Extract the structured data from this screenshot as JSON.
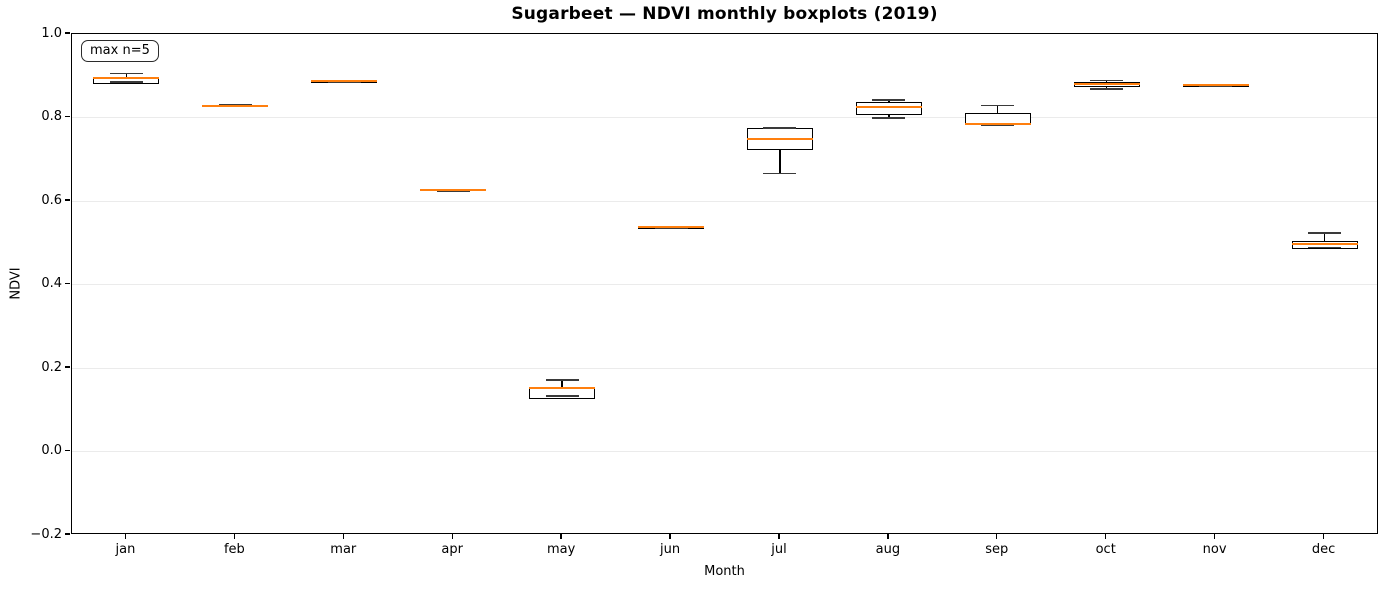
{
  "chart_data": {
    "type": "box",
    "title": "Sugarbeet — NDVI monthly boxplots (2019)",
    "xlabel": "Month",
    "ylabel": "NDVI",
    "annotation": "max n=5",
    "ylim": [
      -0.2,
      1.0
    ],
    "grid": "horizontal-light",
    "legend_position": "none",
    "yticks": [
      {
        "value": 1.0,
        "label": "1.0"
      },
      {
        "value": 0.8,
        "label": "0.8"
      },
      {
        "value": 0.6,
        "label": "0.6"
      },
      {
        "value": 0.4,
        "label": "0.4"
      },
      {
        "value": 0.2,
        "label": "0.2"
      },
      {
        "value": 0.0,
        "label": "0.0"
      },
      {
        "value": -0.2,
        "label": "−0.2"
      }
    ],
    "categories": [
      "jan",
      "feb",
      "mar",
      "apr",
      "may",
      "jun",
      "jul",
      "aug",
      "sep",
      "oct",
      "nov",
      "dec"
    ],
    "boxes": [
      {
        "month": "jan",
        "whislo": 0.88,
        "q1": 0.88,
        "med": 0.894,
        "q3": 0.897,
        "whishi": 0.905,
        "cap_low": 0.885
      },
      {
        "month": "feb",
        "whislo": 0.827,
        "q1": 0.827,
        "med": 0.828,
        "q3": 0.83,
        "whishi": 0.83
      },
      {
        "month": "mar",
        "whislo": 0.885,
        "q1": 0.885,
        "med": 0.887,
        "q3": 0.889,
        "whishi": 0.889
      },
      {
        "month": "apr",
        "whislo": 0.623,
        "q1": 0.623,
        "med": 0.626,
        "q3": 0.628,
        "whishi": 0.628
      },
      {
        "month": "may",
        "whislo": 0.126,
        "q1": 0.126,
        "med": 0.151,
        "q3": 0.154,
        "whishi": 0.171,
        "cap_low": 0.133
      },
      {
        "month": "jun",
        "whislo": 0.535,
        "q1": 0.535,
        "med": 0.537,
        "q3": 0.539,
        "whishi": 0.539
      },
      {
        "month": "jul",
        "whislo": 0.666,
        "q1": 0.723,
        "med": 0.748,
        "q3": 0.775,
        "whishi": 0.775
      },
      {
        "month": "aug",
        "whislo": 0.799,
        "q1": 0.806,
        "med": 0.824,
        "q3": 0.836,
        "whishi": 0.842
      },
      {
        "month": "sep",
        "whislo": 0.782,
        "q1": 0.782,
        "med": 0.785,
        "q3": 0.81,
        "whishi": 0.829
      },
      {
        "month": "oct",
        "whislo": 0.868,
        "q1": 0.874,
        "med": 0.881,
        "q3": 0.886,
        "whishi": 0.888
      },
      {
        "month": "nov",
        "whislo": 0.875,
        "q1": 0.875,
        "med": 0.877,
        "q3": 0.879,
        "whishi": 0.879
      },
      {
        "month": "dec",
        "whislo": 0.485,
        "q1": 0.485,
        "med": 0.496,
        "q3": 0.503,
        "whishi": 0.523,
        "cap_low": 0.488
      }
    ],
    "colors": {
      "median": "#ff7f0e",
      "box_edge": "#000000",
      "whisker": "#000000",
      "cap": "#3a3a3a",
      "grid": "#ebebeb",
      "background": "#ffffff"
    }
  }
}
